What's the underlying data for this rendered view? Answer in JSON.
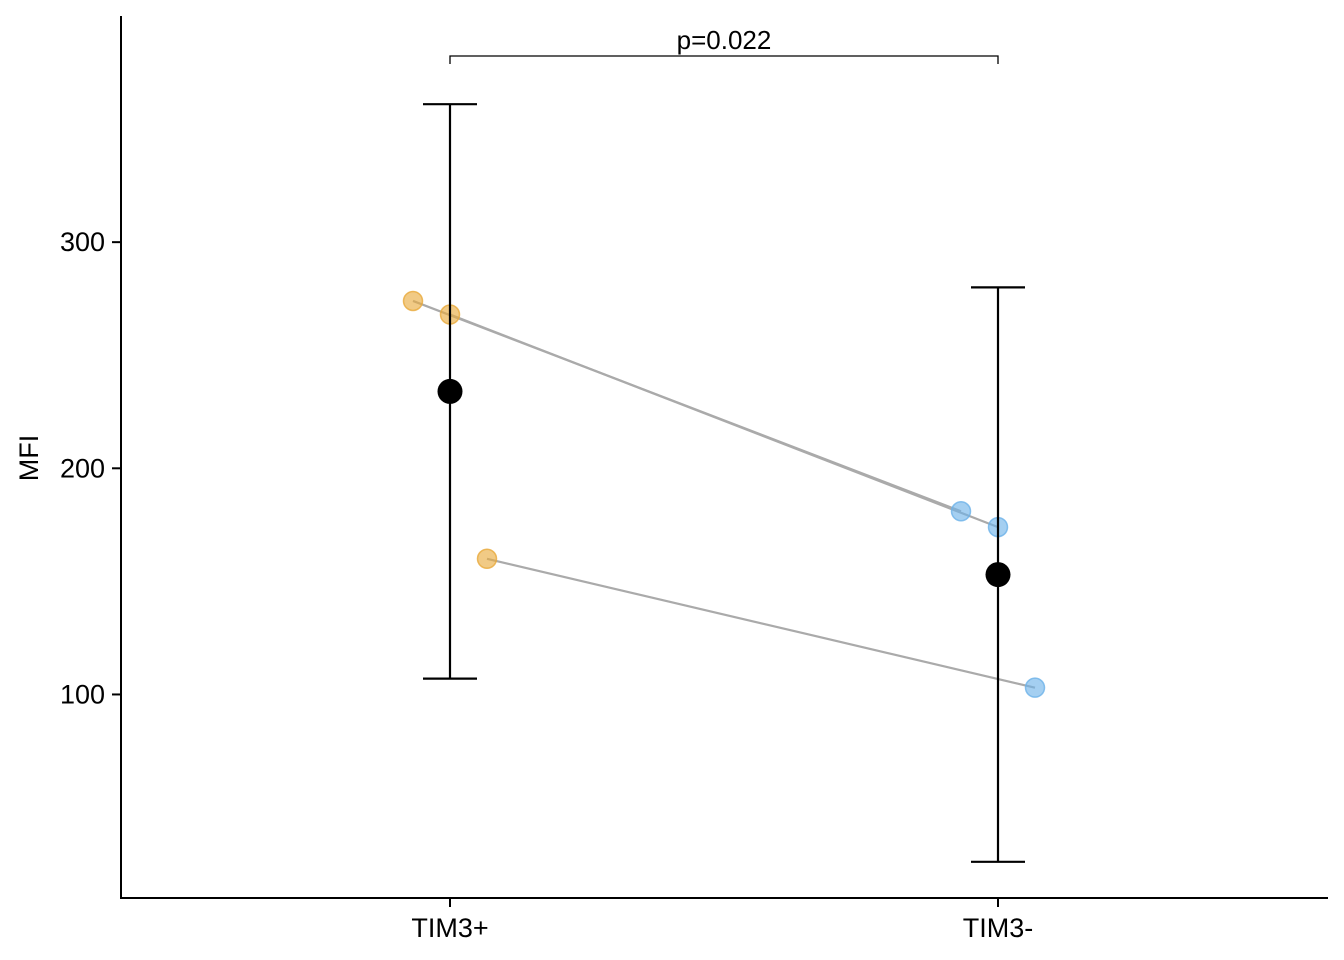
{
  "chart_data": {
    "type": "scatter",
    "title": "",
    "xlabel": "",
    "ylabel": "MFI",
    "categories": [
      "TIM3+",
      "TIM3-"
    ],
    "y_ticks": [
      "100",
      "200",
      "300"
    ],
    "ylim": [
      10,
      400
    ],
    "grid": false,
    "legend": "none",
    "paired_points": [
      {
        "TIM3+": 274,
        "TIM3-": 181
      },
      {
        "TIM3+": 268,
        "TIM3-": 174
      },
      {
        "TIM3+": 160,
        "TIM3-": 103
      }
    ],
    "summary": [
      {
        "category": "TIM3+",
        "mean": 234,
        "lower": 107,
        "upper": 361
      },
      {
        "category": "TIM3-",
        "mean": 153,
        "lower": 26,
        "upper": 280
      }
    ],
    "annotation": {
      "text": "p=0.022",
      "from": "TIM3+",
      "to": "TIM3-"
    },
    "colors": {
      "TIM3+": "#E8A93A",
      "TIM3-": "#6CB2E8",
      "pair_line": "#AAAAAA",
      "summary": "#000000"
    }
  }
}
